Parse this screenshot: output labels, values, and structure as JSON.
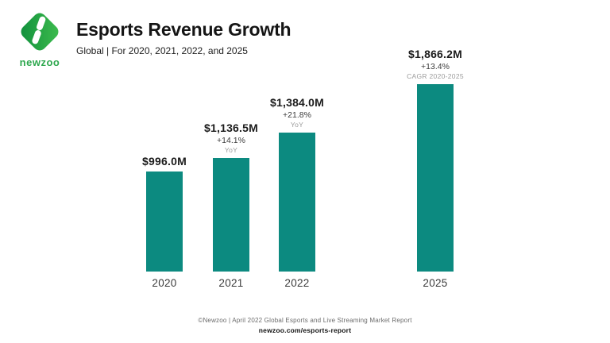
{
  "header": {
    "logo_text": "newzoo",
    "title": "Esports Revenue Growth",
    "subtitle": "Global | For 2020, 2021, 2022, and 2025"
  },
  "chart_data": {
    "type": "bar",
    "title": "Esports Revenue Growth",
    "subtitle": "Global | For 2020, 2021, 2022, and 2025",
    "categories": [
      "2020",
      "2021",
      "2022",
      "2025"
    ],
    "values": [
      996.0,
      1136.5,
      1384.0,
      1866.2
    ],
    "bars": [
      {
        "category": "2020",
        "value": 996.0,
        "value_label": "$996.0M",
        "change_label": "",
        "change_sublabel": ""
      },
      {
        "category": "2021",
        "value": 1136.5,
        "value_label": "$1,136.5M",
        "change_label": "+14.1%",
        "change_sublabel": "YoY"
      },
      {
        "category": "2022",
        "value": 1384.0,
        "value_label": "$1,384.0M",
        "change_label": "+21.8%",
        "change_sublabel": "YoY"
      },
      {
        "category": "2025",
        "value": 1866.2,
        "value_label": "$1,866.2M",
        "change_label": "+13.4%",
        "change_sublabel": "CAGR 2020-2025"
      }
    ],
    "xlabel": "",
    "ylabel": "",
    "grid": false,
    "legend": false,
    "bar_color": "#0c8a80"
  },
  "footer": {
    "source_line": "©Newzoo | April 2022 Global Esports and Live Streaming Market Report",
    "link": "newzoo.com/esports-report"
  },
  "colors": {
    "bar": "#0c8a80",
    "logo_green_dark": "#0f8f3c",
    "logo_green_light": "#3fbd4e",
    "logo_text": "#2fa84f"
  }
}
